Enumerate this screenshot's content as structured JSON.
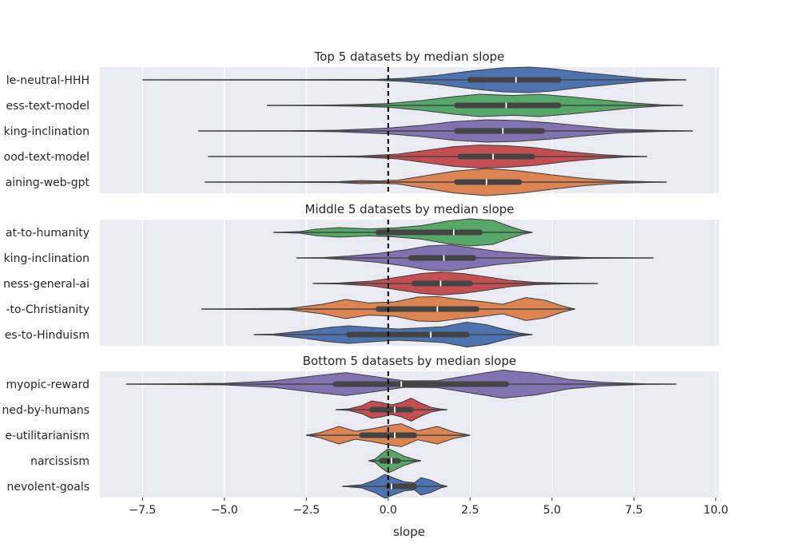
{
  "chart_data": {
    "type": "violin",
    "xlabel": "slope",
    "xlim": [
      -8.8,
      10.1
    ],
    "x_ticks": [
      -7.5,
      -5.0,
      -2.5,
      0.0,
      2.5,
      5.0,
      7.5,
      10.0
    ],
    "x_tick_labels": [
      "−7.5",
      "−5.0",
      "−2.5",
      "0.0",
      "2.5",
      "5.0",
      "7.5",
      "10.0"
    ],
    "reference_line": {
      "x": 0,
      "style": "dashed",
      "color": "#000000"
    },
    "grid": true,
    "panels": [
      {
        "title": "Top 5 datasets by median slope",
        "series": [
          {
            "label": "le-neutral-HHH",
            "color": "#4c72b0",
            "min": -7.5,
            "q1": 2.5,
            "median": 3.9,
            "q3": 5.2,
            "max": 9.1,
            "density": [
              [
                -7.5,
                0
              ],
              [
                -3,
                0.01
              ],
              [
                -0.3,
                0.03
              ],
              [
                0.5,
                0.1
              ],
              [
                1.5,
                0.28
              ],
              [
                2.5,
                0.55
              ],
              [
                3.5,
                0.75
              ],
              [
                4.3,
                0.8
              ],
              [
                5,
                0.7
              ],
              [
                6,
                0.45
              ],
              [
                7,
                0.25
              ],
              [
                7.8,
                0.1
              ],
              [
                8.6,
                0.03
              ],
              [
                9.1,
                0
              ]
            ]
          },
          {
            "label": "ess-text-model",
            "color": "#55a868",
            "min": -3.7,
            "q1": 2.1,
            "median": 3.6,
            "q3": 5.2,
            "max": 9.0,
            "density": [
              [
                -3.7,
                0
              ],
              [
                -2,
                0.02
              ],
              [
                -1,
                0.05
              ],
              [
                0,
                0.12
              ],
              [
                1,
                0.3
              ],
              [
                2,
                0.55
              ],
              [
                2.8,
                0.7
              ],
              [
                3.8,
                0.62
              ],
              [
                4.6,
                0.7
              ],
              [
                5.5,
                0.55
              ],
              [
                6.5,
                0.35
              ],
              [
                7.5,
                0.15
              ],
              [
                8.3,
                0.04
              ],
              [
                9,
                0
              ]
            ]
          },
          {
            "label": "king-inclination",
            "color": "#8172b2",
            "min": -5.8,
            "q1": 2.1,
            "median": 3.5,
            "q3": 4.7,
            "max": 9.3,
            "density": [
              [
                -5.8,
                0
              ],
              [
                -3,
                0.01
              ],
              [
                -1.5,
                0.05
              ],
              [
                0,
                0.18
              ],
              [
                1,
                0.35
              ],
              [
                2,
                0.58
              ],
              [
                3,
                0.7
              ],
              [
                4,
                0.65
              ],
              [
                5,
                0.5
              ],
              [
                6,
                0.3
              ],
              [
                7,
                0.12
              ],
              [
                8.3,
                0.03
              ],
              [
                9.3,
                0
              ]
            ]
          },
          {
            "label": "ood-text-model",
            "color": "#c44e52",
            "min": -5.5,
            "q1": 2.2,
            "median": 3.2,
            "q3": 4.4,
            "max": 7.9,
            "density": [
              [
                -5.5,
                0
              ],
              [
                -2,
                0.01
              ],
              [
                -0.8,
                0.04
              ],
              [
                0.3,
                0.15
              ],
              [
                1.2,
                0.4
              ],
              [
                2,
                0.62
              ],
              [
                2.8,
                0.72
              ],
              [
                3.6,
                0.68
              ],
              [
                4.5,
                0.55
              ],
              [
                5.5,
                0.3
              ],
              [
                6.5,
                0.12
              ],
              [
                7.2,
                0.04
              ],
              [
                7.9,
                0
              ]
            ]
          },
          {
            "label": "aining-web-gpt",
            "color": "#dd8452",
            "min": -5.6,
            "q1": 2.1,
            "median": 3.0,
            "q3": 4.0,
            "max": 8.5,
            "density": [
              [
                -5.6,
                0
              ],
              [
                -3,
                0.01
              ],
              [
                -1.5,
                0.03
              ],
              [
                -0.8,
                0.1
              ],
              [
                -0.3,
                0.07
              ],
              [
                0.3,
                0.12
              ],
              [
                1.2,
                0.42
              ],
              [
                2,
                0.68
              ],
              [
                3,
                0.85
              ],
              [
                4,
                0.7
              ],
              [
                5,
                0.45
              ],
              [
                6,
                0.22
              ],
              [
                7,
                0.08
              ],
              [
                8,
                0.02
              ],
              [
                8.5,
                0
              ]
            ]
          }
        ]
      },
      {
        "title": "Middle 5 datasets by median slope",
        "series": [
          {
            "label": "at-to-humanity",
            "color": "#55a868",
            "min": -3.5,
            "q1": -0.3,
            "median": 2.0,
            "q3": 2.8,
            "max": 4.4,
            "density": [
              [
                -3.5,
                0
              ],
              [
                -2.7,
                0.05
              ],
              [
                -2.2,
                0.2
              ],
              [
                -1.5,
                0.3
              ],
              [
                -0.6,
                0.22
              ],
              [
                0.2,
                0.28
              ],
              [
                1,
                0.42
              ],
              [
                1.8,
                0.7
              ],
              [
                2.5,
                0.85
              ],
              [
                3.2,
                0.75
              ],
              [
                3.7,
                0.38
              ],
              [
                4.1,
                0.12
              ],
              [
                4.4,
                0
              ]
            ]
          },
          {
            "label": "king-inclination",
            "color": "#8172b2",
            "min": -2.8,
            "q1": 0.7,
            "median": 1.7,
            "q3": 2.6,
            "max": 8.1,
            "density": [
              [
                -2.8,
                0
              ],
              [
                -2,
                0.02
              ],
              [
                -1.2,
                0.12
              ],
              [
                -0.3,
                0.28
              ],
              [
                0.5,
                0.5
              ],
              [
                1.2,
                0.75
              ],
              [
                1.9,
                0.82
              ],
              [
                2.6,
                0.62
              ],
              [
                3.3,
                0.42
              ],
              [
                4.2,
                0.25
              ],
              [
                5,
                0.1
              ],
              [
                6,
                0.03
              ],
              [
                8.1,
                0
              ]
            ]
          },
          {
            "label": "ness-general-ai",
            "color": "#c44e52",
            "min": -2.3,
            "q1": 0.8,
            "median": 1.6,
            "q3": 2.5,
            "max": 6.4,
            "density": [
              [
                -2.3,
                0
              ],
              [
                -1.5,
                0.03
              ],
              [
                -0.5,
                0.15
              ],
              [
                0.3,
                0.4
              ],
              [
                1,
                0.62
              ],
              [
                1.6,
                0.72
              ],
              [
                2.3,
                0.62
              ],
              [
                3,
                0.42
              ],
              [
                3.7,
                0.2
              ],
              [
                4.5,
                0.07
              ],
              [
                5.5,
                0.02
              ],
              [
                6.4,
                0
              ]
            ]
          },
          {
            "label": "-to-Christianity",
            "color": "#dd8452",
            "min": -5.7,
            "q1": -0.3,
            "median": 1.5,
            "q3": 2.7,
            "max": 5.7,
            "density": [
              [
                -5.7,
                0
              ],
              [
                -4.5,
                0.02
              ],
              [
                -3,
                0.05
              ],
              [
                -2,
                0.3
              ],
              [
                -1.3,
                0.6
              ],
              [
                -0.6,
                0.38
              ],
              [
                0.2,
                0.45
              ],
              [
                0.9,
                0.75
              ],
              [
                1.5,
                0.78
              ],
              [
                2.2,
                0.6
              ],
              [
                2.8,
                0.48
              ],
              [
                3.5,
                0.3
              ],
              [
                4.2,
                0.72
              ],
              [
                4.8,
                0.55
              ],
              [
                5.3,
                0.2
              ],
              [
                5.7,
                0
              ]
            ]
          },
          {
            "label": "es-to-Hinduism",
            "color": "#4c72b0",
            "min": -4.1,
            "q1": -1.2,
            "median": 1.3,
            "q3": 2.4,
            "max": 4.4,
            "density": [
              [
                -4.1,
                0
              ],
              [
                -3.5,
                0.03
              ],
              [
                -2.6,
                0.22
              ],
              [
                -1.8,
                0.45
              ],
              [
                -1.2,
                0.55
              ],
              [
                -0.5,
                0.45
              ],
              [
                0.3,
                0.35
              ],
              [
                1,
                0.42
              ],
              [
                1.7,
                0.5
              ],
              [
                2.4,
                0.78
              ],
              [
                3,
                0.62
              ],
              [
                3.5,
                0.35
              ],
              [
                4,
                0.1
              ],
              [
                4.4,
                0
              ]
            ]
          }
        ]
      },
      {
        "title": "Bottom 5 datasets by median slope",
        "series": [
          {
            "label": "myopic-reward",
            "color": "#8172b2",
            "min": -8.0,
            "q1": -1.6,
            "median": 0.4,
            "q3": 3.6,
            "max": 8.8,
            "density": [
              [
                -8,
                0
              ],
              [
                -7,
                0.01
              ],
              [
                -5,
                0.05
              ],
              [
                -3.5,
                0.2
              ],
              [
                -2.3,
                0.5
              ],
              [
                -1.3,
                0.72
              ],
              [
                -0.5,
                0.5
              ],
              [
                0.5,
                0.2
              ],
              [
                1.5,
                0.22
              ],
              [
                2.5,
                0.55
              ],
              [
                3.5,
                0.88
              ],
              [
                4.5,
                0.68
              ],
              [
                5.5,
                0.3
              ],
              [
                6.5,
                0.12
              ],
              [
                7.8,
                0.02
              ],
              [
                8.8,
                0
              ]
            ]
          },
          {
            "label": "ned-by-humans",
            "color": "#c44e52",
            "min": -1.6,
            "q1": -0.5,
            "median": 0.2,
            "q3": 0.7,
            "max": 1.8,
            "density": [
              [
                -1.6,
                0
              ],
              [
                -1.2,
                0.05
              ],
              [
                -0.8,
                0.25
              ],
              [
                -0.5,
                0.55
              ],
              [
                -0.2,
                0.45
              ],
              [
                0.1,
                0.3
              ],
              [
                0.4,
                0.45
              ],
              [
                0.7,
                0.72
              ],
              [
                1,
                0.4
              ],
              [
                1.3,
                0.15
              ],
              [
                1.6,
                0.04
              ],
              [
                1.8,
                0
              ]
            ]
          },
          {
            "label": "e-utilitarianism",
            "color": "#dd8452",
            "min": -2.5,
            "q1": -0.8,
            "median": 0.2,
            "q3": 0.8,
            "max": 2.5,
            "density": [
              [
                -2.5,
                0
              ],
              [
                -2.1,
                0.15
              ],
              [
                -1.5,
                0.55
              ],
              [
                -1,
                0.25
              ],
              [
                -0.5,
                0.4
              ],
              [
                0,
                0.6
              ],
              [
                0.4,
                0.72
              ],
              [
                0.9,
                0.28
              ],
              [
                1.5,
                0.55
              ],
              [
                2,
                0.2
              ],
              [
                2.5,
                0
              ]
            ]
          },
          {
            "label": "narcissism",
            "color": "#55a868",
            "min": -0.6,
            "q1": -0.2,
            "median": 0.1,
            "q3": 0.3,
            "max": 1.0,
            "density": [
              [
                -0.6,
                0
              ],
              [
                -0.4,
                0.1
              ],
              [
                -0.2,
                0.45
              ],
              [
                0,
                0.75
              ],
              [
                0.2,
                0.58
              ],
              [
                0.5,
                0.28
              ],
              [
                0.8,
                0.08
              ],
              [
                1,
                0
              ]
            ]
          },
          {
            "label": "nevolent-goals",
            "color": "#4c72b0",
            "min": -1.4,
            "q1": 0.0,
            "median": 0.1,
            "q3": 0.8,
            "max": 1.8,
            "density": [
              [
                -1.4,
                0
              ],
              [
                -0.8,
                0.1
              ],
              [
                -0.4,
                0.4
              ],
              [
                -0.1,
                0.75
              ],
              [
                0.2,
                0.5
              ],
              [
                0.5,
                0.28
              ],
              [
                0.8,
                0.22
              ],
              [
                1,
                0.55
              ],
              [
                1.3,
                0.38
              ],
              [
                1.6,
                0.1
              ],
              [
                1.8,
                0
              ]
            ]
          }
        ]
      }
    ]
  }
}
